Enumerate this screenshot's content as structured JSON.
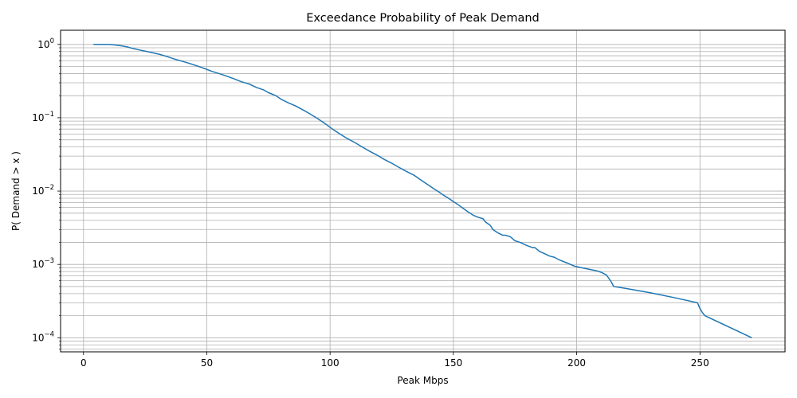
{
  "chart_data": {
    "type": "line",
    "title": "Exceedance Probability of Peak Demand",
    "xlabel": "Peak Mbps",
    "ylabel": "P( Demand > x )",
    "xlim": [
      -9.3,
      284.5
    ],
    "ylim": [
      6.43e-05,
      1.56
    ],
    "yscale": "log",
    "grid": true,
    "grid_minor_y": true,
    "x_ticks": [
      {
        "value": 0,
        "label": "0"
      },
      {
        "value": 50,
        "label": "50"
      },
      {
        "value": 100,
        "label": "100"
      },
      {
        "value": 150,
        "label": "150"
      },
      {
        "value": 200,
        "label": "200"
      },
      {
        "value": 250,
        "label": "250"
      }
    ],
    "y_ticks": [
      {
        "value": 1,
        "base": "10",
        "exp": "0"
      },
      {
        "value": 0.1,
        "base": "10",
        "exp": "−1"
      },
      {
        "value": 0.01,
        "base": "10",
        "exp": "−2"
      },
      {
        "value": 0.001,
        "base": "10",
        "exp": "−3"
      },
      {
        "value": 0.0001,
        "base": "10",
        "exp": "−4"
      }
    ],
    "line_color": "#1f77b4",
    "series": [
      {
        "x": [
          4,
          7,
          10,
          12,
          14,
          16,
          18,
          20,
          22,
          25,
          28,
          31,
          34,
          37,
          40,
          43,
          46,
          49,
          52,
          55,
          58,
          61,
          64,
          67,
          70,
          73,
          75,
          78,
          80,
          83,
          86,
          89,
          92,
          95,
          98,
          101,
          104,
          107,
          110,
          113,
          116,
          119,
          122,
          125,
          128,
          131,
          134,
          136,
          138,
          140,
          142,
          144,
          146,
          148,
          150,
          152,
          154,
          156,
          158,
          160,
          162,
          163,
          165,
          166,
          168,
          170,
          171,
          173,
          175,
          177,
          180,
          182,
          183,
          185,
          187,
          189,
          191,
          193,
          196,
          199,
          202,
          205,
          208,
          210,
          212,
          213,
          214,
          215,
          220,
          230,
          240,
          249,
          250,
          251,
          252,
          271
        ],
        "y": [
          1.0,
          1.0,
          1.0,
          0.99,
          0.97,
          0.95,
          0.92,
          0.88,
          0.85,
          0.81,
          0.77,
          0.73,
          0.68,
          0.63,
          0.59,
          0.55,
          0.51,
          0.47,
          0.43,
          0.4,
          0.37,
          0.34,
          0.31,
          0.29,
          0.26,
          0.24,
          0.22,
          0.2,
          0.18,
          0.16,
          0.145,
          0.128,
          0.112,
          0.097,
          0.083,
          0.07,
          0.06,
          0.052,
          0.046,
          0.04,
          0.035,
          0.031,
          0.027,
          0.024,
          0.021,
          0.0185,
          0.0165,
          0.0148,
          0.0133,
          0.012,
          0.0108,
          0.0098,
          0.0088,
          0.008,
          0.0072,
          0.0065,
          0.0058,
          0.0052,
          0.0047,
          0.0044,
          0.0042,
          0.0038,
          0.0034,
          0.003,
          0.0027,
          0.0025,
          0.0025,
          0.0024,
          0.0021,
          0.002,
          0.0018,
          0.0017,
          0.0017,
          0.0015,
          0.0014,
          0.0013,
          0.00125,
          0.00115,
          0.00105,
          0.00095,
          0.0009,
          0.00086,
          0.00082,
          0.00078,
          0.00072,
          0.00065,
          0.00058,
          0.0005,
          0.00047,
          0.00041,
          0.00035,
          0.0003,
          0.00025,
          0.00022,
          0.0002,
          0.0001
        ]
      }
    ]
  }
}
